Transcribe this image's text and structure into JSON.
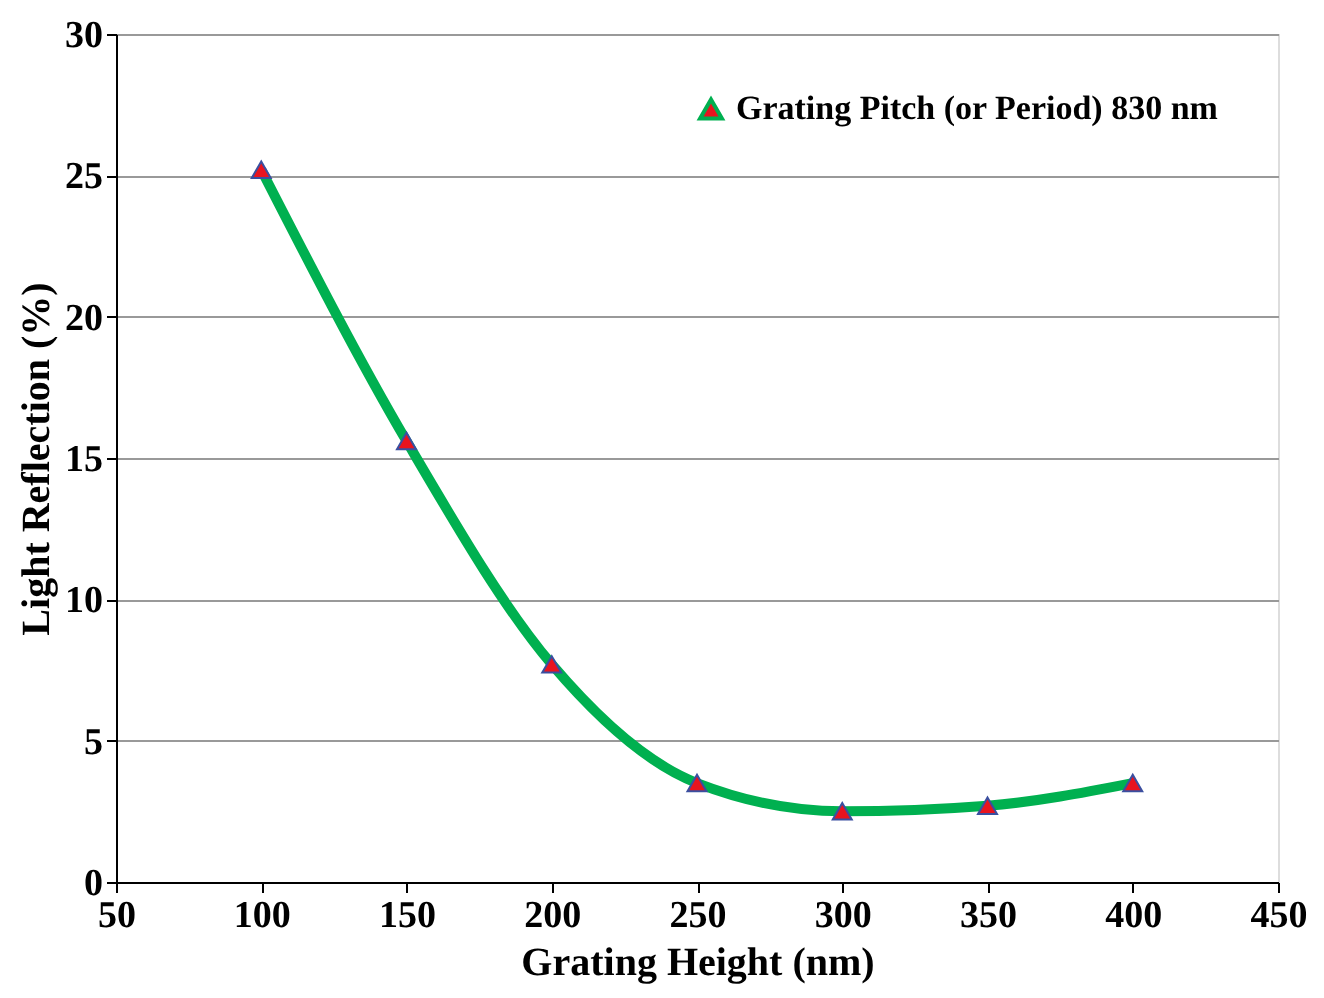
{
  "chart_data": {
    "type": "line",
    "xlabel": "Grating Height (nm)",
    "ylabel": "Light Reflection (%)",
    "x": [
      100,
      150,
      200,
      250,
      300,
      350,
      400
    ],
    "series": [
      {
        "name": "Grating Pitch (or Period) 830 nm",
        "color": "#00b050",
        "values": [
          25.2,
          15.6,
          7.7,
          3.5,
          2.5,
          2.7,
          3.5
        ]
      }
    ],
    "xlim": [
      50,
      450
    ],
    "xticks": [
      50,
      100,
      150,
      200,
      250,
      300,
      350,
      400,
      450
    ],
    "ylim": [
      0,
      30
    ],
    "yticks": [
      0,
      5,
      10,
      15,
      20,
      25,
      30
    ],
    "grid": "y",
    "legend": "top right",
    "marker": "triangle",
    "line_style": "solid"
  }
}
